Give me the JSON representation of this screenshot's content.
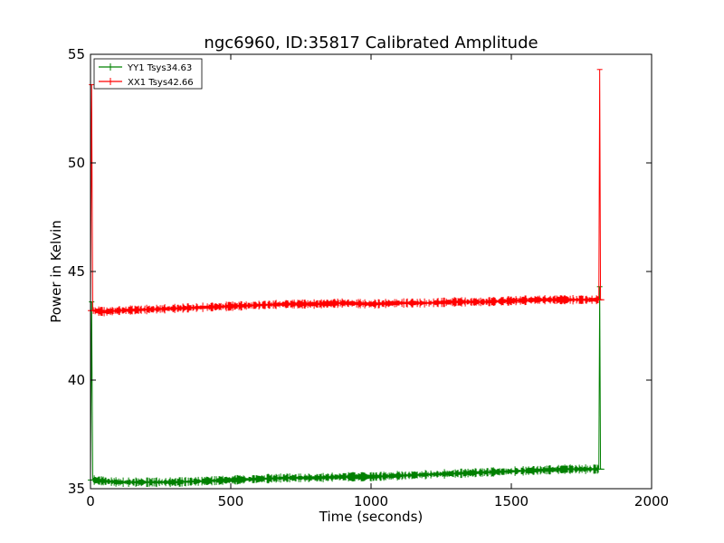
{
  "chart_data": {
    "type": "line",
    "title": "ngc6960, ID:35817 Calibrated Amplitude",
    "xlabel": "Time (seconds)",
    "ylabel": "Power in Kelvin",
    "xlim": [
      0,
      2000
    ],
    "ylim": [
      35,
      55
    ],
    "xticks": [
      0,
      500,
      1000,
      1500,
      2000
    ],
    "yticks": [
      35,
      40,
      45,
      50,
      55
    ],
    "xtick_labels": [
      "0",
      "500",
      "1000",
      "1500",
      "2000"
    ],
    "ytick_labels": [
      "35",
      "40",
      "45",
      "50",
      "55"
    ],
    "grid": false,
    "legend_position": "top-left",
    "series": [
      {
        "name": "YY1 Tsys34.63",
        "color": "#008000",
        "x": [
          0,
          4,
          8,
          10,
          50,
          100,
          200,
          300,
          400,
          500,
          600,
          700,
          800,
          900,
          1000,
          1100,
          1200,
          1300,
          1400,
          1500,
          1600,
          1700,
          1800,
          1812,
          1815,
          1818,
          1822
        ],
        "y": [
          35.4,
          43.6,
          35.4,
          35.4,
          35.35,
          35.3,
          35.3,
          35.3,
          35.35,
          35.4,
          35.45,
          35.5,
          35.5,
          35.55,
          35.55,
          35.6,
          35.65,
          35.7,
          35.75,
          35.8,
          35.85,
          35.9,
          35.9,
          35.9,
          44.3,
          35.9,
          35.9
        ]
      },
      {
        "name": "XX1 Tsys42.66",
        "color": "#ff0000",
        "x": [
          0,
          4,
          8,
          10,
          50,
          100,
          200,
          300,
          400,
          500,
          600,
          700,
          800,
          900,
          1000,
          1100,
          1200,
          1300,
          1400,
          1500,
          1600,
          1700,
          1800,
          1812,
          1815,
          1818,
          1822
        ],
        "y": [
          43.2,
          53.6,
          43.2,
          43.2,
          43.15,
          43.2,
          43.25,
          43.3,
          43.35,
          43.4,
          43.45,
          43.5,
          43.5,
          43.55,
          43.5,
          43.55,
          43.55,
          43.6,
          43.6,
          43.65,
          43.7,
          43.7,
          43.7,
          43.7,
          54.3,
          43.7,
          43.7
        ]
      }
    ]
  }
}
